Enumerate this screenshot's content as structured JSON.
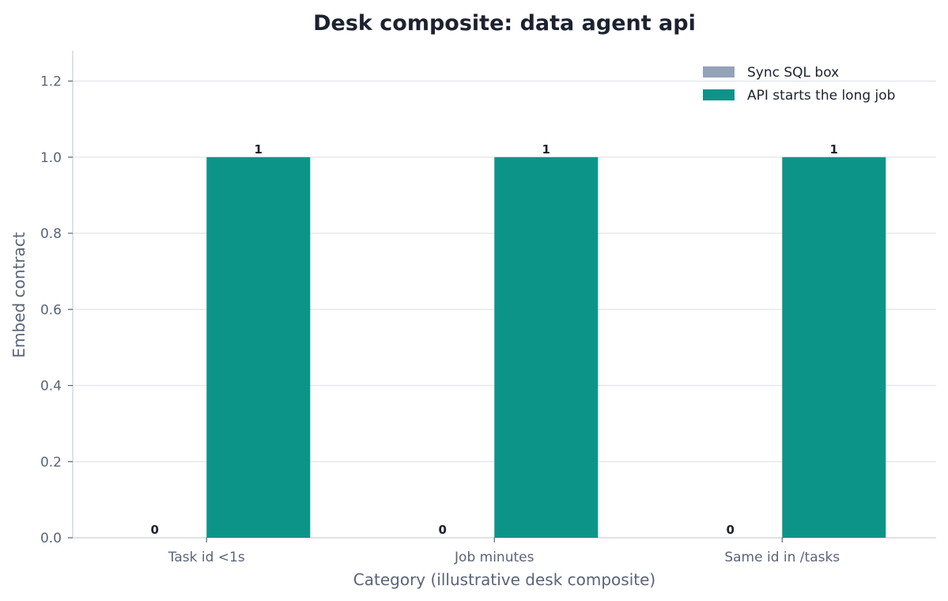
{
  "chart_data": {
    "type": "bar",
    "title": "Desk composite: data agent api",
    "xlabel": "Category (illustrative desk composite)",
    "ylabel": "Embed contract",
    "categories": [
      "Task id <1s",
      "Job minutes",
      "Same id in /tasks"
    ],
    "series": [
      {
        "name": "Sync SQL box",
        "values": [
          0,
          0,
          0
        ],
        "color": "#94a3b8"
      },
      {
        "name": "API starts the long job",
        "values": [
          1,
          1,
          1
        ],
        "color": "#0d9488"
      }
    ],
    "ylim": [
      0,
      1.28
    ],
    "yticks": [
      "0.0",
      "0.2",
      "0.4",
      "0.6",
      "0.8",
      "1.0",
      "1.2"
    ],
    "data_labels": [
      [
        "0",
        "0",
        "0"
      ],
      [
        "1",
        "1",
        "1"
      ]
    ],
    "grid": "horizontal",
    "legend_position": "top-right"
  }
}
